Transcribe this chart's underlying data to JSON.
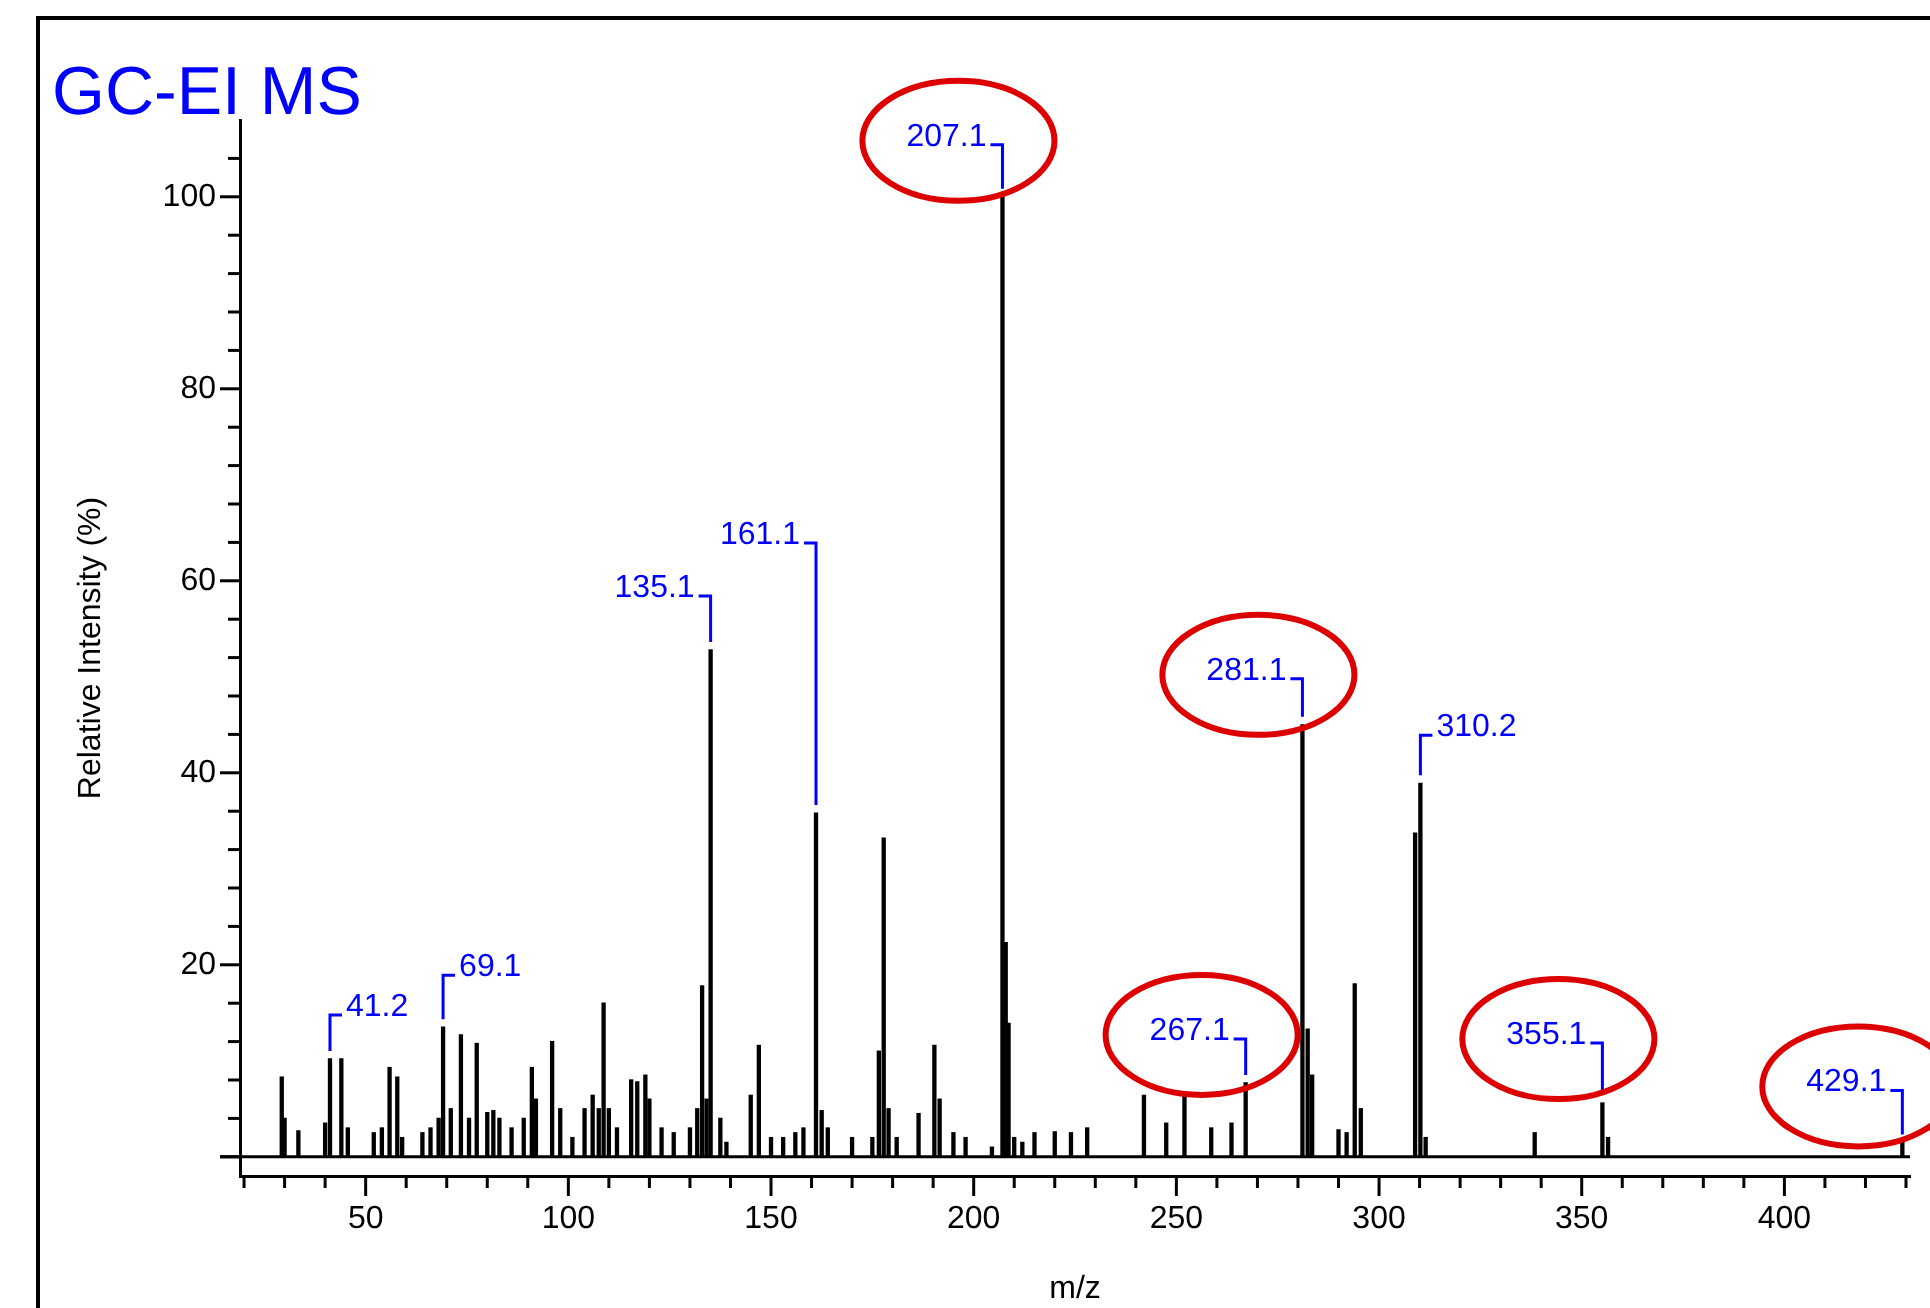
{
  "chart_data": {
    "type": "bar",
    "title": "GC-EI MS",
    "xlabel": "m/z",
    "ylabel": "Relative Intensity (%)",
    "x": [
      29.3,
      30,
      33.4,
      40,
      41.2,
      44,
      45.6,
      52,
      54,
      55.9,
      57.8,
      59,
      64,
      66,
      68,
      69.1,
      71,
      73.5,
      75.5,
      77.4,
      80,
      81.5,
      83,
      86,
      89,
      91,
      92,
      96,
      98,
      101,
      104,
      106,
      107.5,
      108.7,
      110,
      112,
      115.5,
      117,
      119,
      120,
      123,
      126,
      130,
      131.8,
      133,
      134.1,
      135.1,
      137.5,
      139,
      145,
      147,
      150,
      153,
      156,
      158,
      161.1,
      162.5,
      164,
      170,
      175,
      176.6,
      177.8,
      179,
      181,
      186.4,
      190.3,
      191.6,
      195,
      198,
      204.5,
      207.1,
      207.9,
      208.6,
      210,
      212,
      215,
      220,
      224,
      228,
      242,
      247.5,
      252,
      258.6,
      263.6,
      267.1,
      281.1,
      282.4,
      283.5,
      290,
      292,
      294,
      295.5,
      308.9,
      310.2,
      311.5,
      338.4,
      355.1,
      356.5,
      429.1
    ],
    "values": [
      8.3,
      4,
      2.7,
      3.5,
      10.2,
      10.2,
      3,
      2.5,
      3,
      9.3,
      8.3,
      2,
      2.5,
      3,
      4,
      13.5,
      5,
      12.7,
      4,
      11.8,
      4.6,
      4.8,
      4,
      3,
      4,
      9.3,
      6,
      12,
      5,
      2,
      5,
      6.4,
      5,
      16,
      5,
      3,
      8,
      7.8,
      8.5,
      6,
      3,
      2.5,
      3,
      5,
      17.8,
      6,
      52.8,
      4,
      1.5,
      6.4,
      11.6,
      2,
      2,
      2.5,
      3,
      35.8,
      4.8,
      3,
      2,
      2,
      11,
      33.2,
      5,
      2,
      4.5,
      11.6,
      6,
      2.5,
      2,
      1,
      100,
      22.3,
      13.9,
      2,
      1.5,
      2.5,
      2.6,
      2.5,
      3,
      6.4,
      3.5,
      6.5,
      3,
      3.5,
      7.7,
      45,
      13.3,
      8.5,
      2.8,
      2.5,
      18,
      5,
      33.7,
      38.9,
      2,
      2.5,
      5.6,
      2,
      1.5
    ],
    "color": "#000000",
    "xlim": [
      19,
      431
    ],
    "xticks": [
      {
        "value": 20,
        "label": null
      },
      {
        "value": 30,
        "label": null
      },
      {
        "value": 40,
        "label": null
      },
      50,
      {
        "value": 60,
        "label": null
      },
      {
        "value": 70,
        "label": null
      },
      {
        "value": 80,
        "label": null
      },
      {
        "value": 90,
        "label": null
      },
      100,
      {
        "value": 110,
        "label": null
      },
      {
        "value": 120,
        "label": null
      },
      {
        "value": 130,
        "label": null
      },
      {
        "value": 140,
        "label": null
      },
      150,
      {
        "value": 160,
        "label": null
      },
      {
        "value": 170,
        "label": null
      },
      {
        "value": 180,
        "label": null
      },
      {
        "value": 190,
        "label": null
      },
      200,
      {
        "value": 210,
        "label": null
      },
      {
        "value": 220,
        "label": null
      },
      {
        "value": 230,
        "label": null
      },
      {
        "value": 240,
        "label": null
      },
      250,
      {
        "value": 260,
        "label": null
      },
      {
        "value": 270,
        "label": null
      },
      {
        "value": 280,
        "label": null
      },
      {
        "value": 290,
        "label": null
      },
      300,
      {
        "value": 310,
        "label": null
      },
      {
        "value": 320,
        "label": null
      },
      {
        "value": 330,
        "label": null
      },
      {
        "value": 340,
        "label": null
      },
      350,
      {
        "value": 360,
        "label": null
      },
      {
        "value": 370,
        "label": null
      },
      {
        "value": 380,
        "label": null
      },
      {
        "value": 390,
        "label": null
      },
      400,
      {
        "value": 410,
        "label": null
      },
      {
        "value": 420,
        "label": null
      },
      {
        "value": 430,
        "label": null
      }
    ],
    "ylim": [
      -2,
      108
    ],
    "yticks": [
      {
        "value": 0,
        "label": null
      },
      {
        "value": 4,
        "label": null
      },
      {
        "value": 8,
        "label": null
      },
      {
        "value": 12,
        "label": null
      },
      {
        "value": 16,
        "label": null
      },
      20,
      {
        "value": 24,
        "label": null
      },
      {
        "value": 28,
        "label": null
      },
      {
        "value": 32,
        "label": null
      },
      {
        "value": 36,
        "label": null
      },
      40,
      {
        "value": 44,
        "label": null
      },
      {
        "value": 48,
        "label": null
      },
      {
        "value": 52,
        "label": null
      },
      {
        "value": 56,
        "label": null
      },
      60,
      {
        "value": 64,
        "label": null
      },
      {
        "value": 68,
        "label": null
      },
      {
        "value": 72,
        "label": null
      },
      {
        "value": 76,
        "label": null
      },
      80,
      {
        "value": 84,
        "label": null
      },
      {
        "value": 88,
        "label": null
      },
      {
        "value": 92,
        "label": null
      },
      {
        "value": 96,
        "label": null
      },
      100,
      {
        "value": 104,
        "label": null
      }
    ],
    "ref_lines": [
      {
        "axis": "y",
        "value": 0,
        "color": "#000000"
      }
    ],
    "annotations": [
      {
        "text": "41.2",
        "x": 41.2,
        "y": 10.2
      },
      {
        "text": "69.1",
        "x": 69.1,
        "y": 13.5
      },
      {
        "text": "135.1",
        "x": 135.1,
        "y": 52.8
      },
      {
        "text": "161.1",
        "x": 161.1,
        "y": 35.8
      },
      {
        "text": "207.1",
        "x": 207.1,
        "y": 100
      },
      {
        "text": "267.1",
        "x": 267.1,
        "y": 7.7
      },
      {
        "text": "281.1",
        "x": 281.1,
        "y": 45
      },
      {
        "text": "310.2",
        "x": 310.2,
        "y": 38.9
      },
      {
        "text": "355.1",
        "x": 355.1,
        "y": 5.6
      },
      {
        "text": "429.1",
        "x": 429.1,
        "y": 1.5
      }
    ],
    "grid": false,
    "legend": false
  }
}
